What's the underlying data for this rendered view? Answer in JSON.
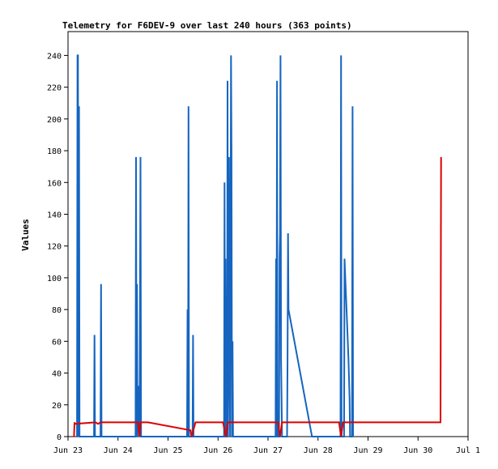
{
  "chart_data": {
    "type": "line",
    "title": "Telemetry for F6DEV-9 over last 240 hours (363 points)",
    "ylabel": "Values",
    "xlabel": "",
    "ylim": [
      0,
      255
    ],
    "xlim_days": [
      "Jun 23",
      "Jul 1"
    ],
    "y_ticks": [
      0,
      20,
      40,
      60,
      80,
      100,
      120,
      140,
      160,
      180,
      200,
      220,
      240
    ],
    "x_ticks": [
      "Jun 23",
      "Jun 24",
      "Jun 25",
      "Jun 26",
      "Jun 27",
      "Jun 28",
      "Jun 29",
      "Jun 30",
      "Jul 1"
    ],
    "grid": false,
    "series": [
      {
        "color": "#1565c0",
        "points": [
          [
            23.18,
            0
          ],
          [
            23.19,
            240
          ],
          [
            23.2,
            240
          ],
          [
            23.21,
            0
          ],
          [
            23.22,
            208
          ],
          [
            23.23,
            0
          ],
          [
            23.52,
            0
          ],
          [
            23.53,
            64
          ],
          [
            23.54,
            0
          ],
          [
            23.65,
            0
          ],
          [
            23.66,
            96
          ],
          [
            23.67,
            0
          ],
          [
            24.35,
            0
          ],
          [
            24.36,
            176
          ],
          [
            24.37,
            0
          ],
          [
            24.38,
            96
          ],
          [
            24.39,
            0
          ],
          [
            24.41,
            24
          ],
          [
            24.42,
            32
          ],
          [
            24.43,
            0
          ],
          [
            24.44,
            88
          ],
          [
            24.45,
            176
          ],
          [
            24.46,
            0
          ],
          [
            25.38,
            0
          ],
          [
            25.39,
            80
          ],
          [
            25.4,
            0
          ],
          [
            25.41,
            208
          ],
          [
            25.42,
            0
          ],
          [
            25.49,
            0
          ],
          [
            25.5,
            64
          ],
          [
            25.51,
            0
          ],
          [
            26.12,
            0
          ],
          [
            26.13,
            160
          ],
          [
            26.14,
            0
          ],
          [
            26.15,
            112
          ],
          [
            26.16,
            0
          ],
          [
            26.18,
            0
          ],
          [
            26.19,
            224
          ],
          [
            26.2,
            0
          ],
          [
            26.22,
            176
          ],
          [
            26.23,
            48
          ],
          [
            26.24,
            0
          ],
          [
            26.26,
            240
          ],
          [
            26.27,
            180
          ],
          [
            26.28,
            0
          ],
          [
            26.29,
            60
          ],
          [
            26.3,
            0
          ],
          [
            27.15,
            0
          ],
          [
            27.16,
            112
          ],
          [
            27.17,
            0
          ],
          [
            27.18,
            224
          ],
          [
            27.19,
            0
          ],
          [
            27.22,
            0
          ],
          [
            27.23,
            112
          ],
          [
            27.24,
            128
          ],
          [
            27.25,
            240
          ],
          [
            27.26,
            48
          ],
          [
            27.27,
            24
          ],
          [
            27.28,
            0
          ],
          [
            27.38,
            0
          ],
          [
            27.39,
            48
          ],
          [
            27.4,
            128
          ],
          [
            27.41,
            80
          ],
          [
            27.88,
            0
          ],
          [
            28.45,
            0
          ],
          [
            28.46,
            240
          ],
          [
            28.47,
            0
          ],
          [
            28.52,
            0
          ],
          [
            28.53,
            112
          ],
          [
            28.54,
            104
          ],
          [
            28.55,
            96
          ],
          [
            28.58,
            72
          ],
          [
            28.61,
            48
          ],
          [
            28.63,
            24
          ],
          [
            28.64,
            0
          ],
          [
            28.68,
            0
          ],
          [
            28.69,
            208
          ],
          [
            28.7,
            0
          ]
        ]
      },
      {
        "color": "#dd0000",
        "points": [
          [
            23.12,
            0
          ],
          [
            23.13,
            9
          ],
          [
            23.14,
            8
          ],
          [
            23.55,
            9
          ],
          [
            23.6,
            8
          ],
          [
            23.65,
            9
          ],
          [
            24.4,
            9
          ],
          [
            24.43,
            0
          ],
          [
            24.45,
            9
          ],
          [
            24.6,
            9
          ],
          [
            25.45,
            4
          ],
          [
            25.47,
            0
          ],
          [
            25.55,
            9
          ],
          [
            26.1,
            9
          ],
          [
            26.16,
            0
          ],
          [
            26.2,
            9
          ],
          [
            27.2,
            9
          ],
          [
            27.24,
            0
          ],
          [
            27.28,
            9
          ],
          [
            27.4,
            9
          ],
          [
            27.45,
            9
          ],
          [
            28.42,
            9
          ],
          [
            28.46,
            0
          ],
          [
            28.5,
            9
          ],
          [
            30.45,
            9
          ],
          [
            30.46,
            176
          ]
        ]
      }
    ]
  }
}
